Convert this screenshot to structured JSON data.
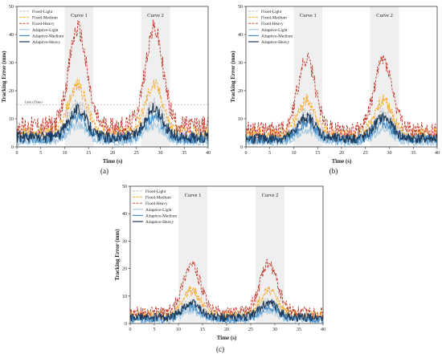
{
  "figure": {
    "panel_labels": [
      "(a)",
      "(b)",
      "(c)"
    ]
  },
  "chart_data": [
    {
      "type": "line",
      "panel": "(a)",
      "xlabel": "Time (s)",
      "ylabel": "Tracking Error (mm)",
      "xlim": [
        0,
        40
      ],
      "ylim": [
        0,
        50
      ],
      "xticks": [
        0,
        5,
        10,
        15,
        20,
        25,
        30,
        35,
        40
      ],
      "yticks": [
        0,
        10,
        20,
        30,
        40,
        50
      ],
      "grid": false,
      "legend_position": "top-left",
      "shaded_regions": [
        {
          "label": "Curve 1",
          "x_start": 10,
          "x_end": 16
        },
        {
          "label": "Curve 2",
          "x_start": 26,
          "x_end": 32
        }
      ],
      "reference_line": {
        "y": 15,
        "label": "Limit (15mm)"
      },
      "series": [
        {
          "name": "Fixed-Light",
          "color": "#bdbdbd",
          "dash": "dashed",
          "baseline": 4.0,
          "peak": 15.5
        },
        {
          "name": "Fixed-Medium",
          "color": "#f5a623",
          "dash": "dashed",
          "baseline": 5.0,
          "peak": 22.0
        },
        {
          "name": "Fixed-Heavy",
          "color": "#c0392b",
          "dash": "dashed",
          "baseline": 7.5,
          "peak": 42.0
        },
        {
          "name": "Adaptive-Light",
          "color": "#a9cce3",
          "dash": "solid",
          "baseline": 2.0,
          "peak": 7.5
        },
        {
          "name": "Adaptive-Medium",
          "color": "#4a90c8",
          "dash": "solid",
          "baseline": 2.8,
          "peak": 10.5
        },
        {
          "name": "Adaptive-Heavy",
          "color": "#1b3a5c",
          "dash": "solid",
          "baseline": 3.5,
          "peak": 13.5
        }
      ]
    },
    {
      "type": "line",
      "panel": "(b)",
      "xlabel": "Time (s)",
      "ylabel": "Tracking Error (mm)",
      "xlim": [
        0,
        40
      ],
      "ylim": [
        0,
        50
      ],
      "xticks": [
        0,
        5,
        10,
        15,
        20,
        25,
        30,
        35,
        40
      ],
      "yticks": [
        0,
        10,
        20,
        30,
        40,
        50
      ],
      "grid": false,
      "legend_position": "top-left",
      "shaded_regions": [
        {
          "label": "Curve 1",
          "x_start": 10,
          "x_end": 16
        },
        {
          "label": "Curve 2",
          "x_start": 26,
          "x_end": 32
        }
      ],
      "series": [
        {
          "name": "Fixed-Light",
          "color": "#bdbdbd",
          "dash": "dashed",
          "baseline": 3.5,
          "peak": 12.0
        },
        {
          "name": "Fixed-Medium",
          "color": "#f5a623",
          "dash": "dashed",
          "baseline": 4.5,
          "peak": 16.5
        },
        {
          "name": "Fixed-Heavy",
          "color": "#c0392b",
          "dash": "dashed",
          "baseline": 6.0,
          "peak": 31.0
        },
        {
          "name": "Adaptive-Light",
          "color": "#a9cce3",
          "dash": "solid",
          "baseline": 1.8,
          "peak": 6.0
        },
        {
          "name": "Adaptive-Medium",
          "color": "#4a90c8",
          "dash": "solid",
          "baseline": 2.5,
          "peak": 8.5
        },
        {
          "name": "Adaptive-Heavy",
          "color": "#1b3a5c",
          "dash": "solid",
          "baseline": 3.0,
          "peak": 10.5
        }
      ]
    },
    {
      "type": "line",
      "panel": "(c)",
      "xlabel": "Time (s)",
      "ylabel": "Tracking Error (mm)",
      "xlim": [
        0,
        40
      ],
      "ylim": [
        0,
        50
      ],
      "xticks": [
        0,
        5,
        10,
        15,
        20,
        25,
        30,
        35,
        40
      ],
      "yticks": [
        0,
        10,
        20,
        30,
        40,
        50
      ],
      "grid": false,
      "legend_position": "top-left",
      "shaded_regions": [
        {
          "label": "Curve 1",
          "x_start": 10,
          "x_end": 16
        },
        {
          "label": "Curve 2",
          "x_start": 26,
          "x_end": 32
        }
      ],
      "series": [
        {
          "name": "Fixed-Light",
          "color": "#bdbdbd",
          "dash": "dashed",
          "baseline": 2.5,
          "peak": 8.0
        },
        {
          "name": "Fixed-Medium",
          "color": "#f5a623",
          "dash": "dashed",
          "baseline": 3.0,
          "peak": 12.0
        },
        {
          "name": "Fixed-Heavy",
          "color": "#c0392b",
          "dash": "dashed",
          "baseline": 4.0,
          "peak": 21.5
        },
        {
          "name": "Adaptive-Light",
          "color": "#a9cce3",
          "dash": "solid",
          "baseline": 1.2,
          "peak": 4.5
        },
        {
          "name": "Adaptive-Medium",
          "color": "#4a90c8",
          "dash": "solid",
          "baseline": 1.6,
          "peak": 6.0
        },
        {
          "name": "Adaptive-Heavy",
          "color": "#1b3a5c",
          "dash": "solid",
          "baseline": 2.2,
          "peak": 7.5
        }
      ]
    }
  ]
}
